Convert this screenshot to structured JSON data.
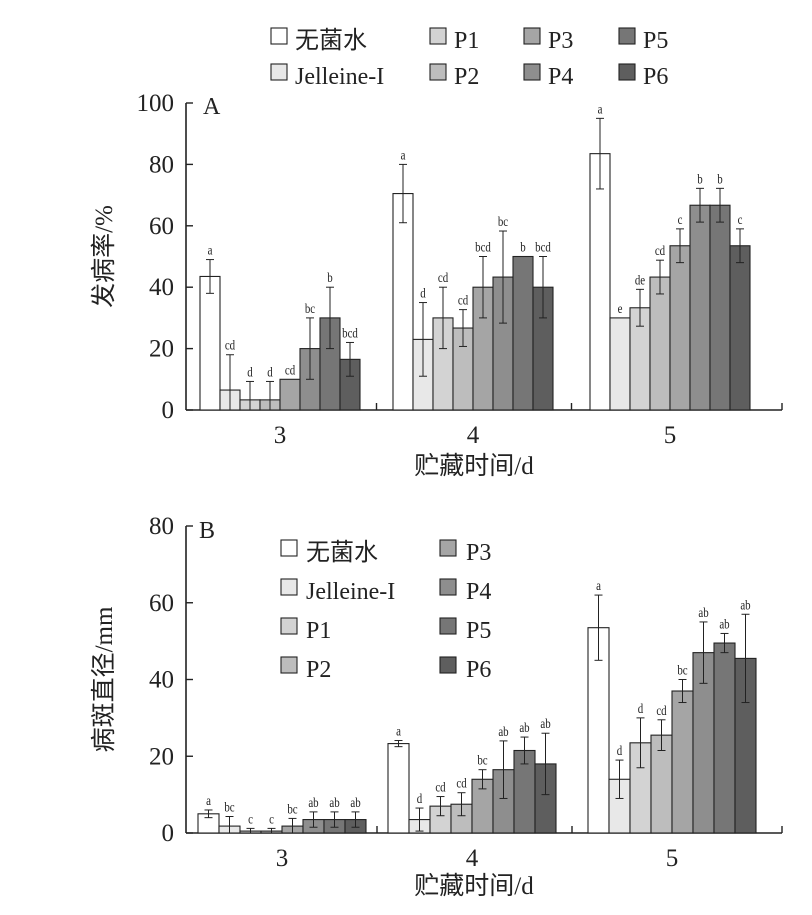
{
  "chart_data": [
    {
      "type": "bar",
      "panel": "A",
      "categories": [
        "3",
        "4",
        "5"
      ],
      "xlabel": "贮藏时间/d",
      "ylabel": "发病率/%",
      "ylim": [
        0,
        100
      ],
      "yticks": [
        0,
        20,
        40,
        60,
        80,
        100
      ],
      "legend": {
        "placement": "top",
        "columns": 4
      },
      "series": [
        {
          "name": "无菌水",
          "color": "#ffffff",
          "values": [
            43.5,
            70.5,
            83.5
          ],
          "errors": [
            5.5,
            9.5,
            11.5
          ],
          "labels": [
            "a",
            "a",
            "a"
          ]
        },
        {
          "name": "Jelleine-I",
          "color": "#e8e8e8",
          "values": [
            6.5,
            23.0,
            30.0
          ],
          "errors": [
            11.5,
            12.0,
            0
          ],
          "labels": [
            "cd",
            "d",
            "e"
          ]
        },
        {
          "name": "P1",
          "color": "#d3d3d3",
          "values": [
            3.3,
            30.0,
            33.3
          ],
          "errors": [
            6.0,
            10.0,
            6.0
          ],
          "labels": [
            "d",
            "cd",
            "de"
          ]
        },
        {
          "name": "P2",
          "color": "#bdbdbd",
          "values": [
            3.3,
            26.7,
            43.3
          ],
          "errors": [
            6.0,
            6.0,
            5.5
          ],
          "labels": [
            "d",
            "cd",
            "cd"
          ]
        },
        {
          "name": "P3",
          "color": "#a5a5a5",
          "values": [
            10.0,
            40.0,
            53.5
          ],
          "errors": [
            0,
            10.0,
            5.5
          ],
          "labels": [
            "cd",
            "bcd",
            "c"
          ]
        },
        {
          "name": "P4",
          "color": "#8e8e8e",
          "values": [
            20.0,
            43.3,
            66.7
          ],
          "errors": [
            10.0,
            15.0,
            5.5
          ],
          "labels": [
            "bc",
            "bc",
            "b"
          ]
        },
        {
          "name": "P5",
          "color": "#767676",
          "values": [
            30.0,
            50.0,
            66.7
          ],
          "errors": [
            10.0,
            0,
            5.5
          ],
          "labels": [
            "b",
            "b",
            "b"
          ]
        },
        {
          "name": "P6",
          "color": "#5e5e5e",
          "values": [
            16.5,
            40.0,
            53.5
          ],
          "errors": [
            5.5,
            10.0,
            5.5
          ],
          "labels": [
            "bcd",
            "bcd",
            "c"
          ]
        }
      ]
    },
    {
      "type": "bar",
      "panel": "B",
      "categories": [
        "3",
        "4",
        "5"
      ],
      "xlabel": "贮藏时间/d",
      "ylabel": "病斑直径/mm",
      "ylim": [
        0,
        80
      ],
      "yticks": [
        0,
        20,
        40,
        60,
        80
      ],
      "legend": {
        "placement": "top-left",
        "columns": 2
      },
      "series": [
        {
          "name": "无菌水",
          "color": "#ffffff",
          "values": [
            5.0,
            23.3,
            53.5
          ],
          "errors": [
            1.0,
            0.8,
            8.5
          ],
          "labels": [
            "a",
            "a",
            "a"
          ]
        },
        {
          "name": "Jelleine-I",
          "color": "#e8e8e8",
          "values": [
            1.8,
            3.5,
            14.0
          ],
          "errors": [
            2.5,
            3.0,
            5.0
          ],
          "labels": [
            "bc",
            "d",
            "d"
          ]
        },
        {
          "name": "P1",
          "color": "#d3d3d3",
          "values": [
            0.5,
            7.0,
            23.5
          ],
          "errors": [
            0.7,
            2.5,
            6.5
          ],
          "labels": [
            "c",
            "cd",
            "d"
          ]
        },
        {
          "name": "P2",
          "color": "#bdbdbd",
          "values": [
            0.5,
            7.5,
            25.5
          ],
          "errors": [
            0.7,
            3.0,
            4.0
          ],
          "labels": [
            "c",
            "cd",
            "cd"
          ]
        },
        {
          "name": "P3",
          "color": "#a5a5a5",
          "values": [
            1.8,
            14.0,
            37.0
          ],
          "errors": [
            2.0,
            2.5,
            3.0
          ],
          "labels": [
            "bc",
            "bc",
            "bc"
          ]
        },
        {
          "name": "P4",
          "color": "#8e8e8e",
          "values": [
            3.5,
            16.5,
            47.0
          ],
          "errors": [
            2.0,
            7.5,
            8.0
          ],
          "labels": [
            "ab",
            "ab",
            "ab"
          ]
        },
        {
          "name": "P5",
          "color": "#767676",
          "values": [
            3.5,
            21.5,
            49.5
          ],
          "errors": [
            2.0,
            3.5,
            2.5
          ],
          "labels": [
            "ab",
            "ab",
            "ab"
          ]
        },
        {
          "name": "P6",
          "color": "#5e5e5e",
          "values": [
            3.5,
            18.0,
            45.5
          ],
          "errors": [
            2.0,
            8.0,
            11.5
          ],
          "labels": [
            "ab",
            "ab",
            "ab"
          ]
        }
      ]
    }
  ]
}
